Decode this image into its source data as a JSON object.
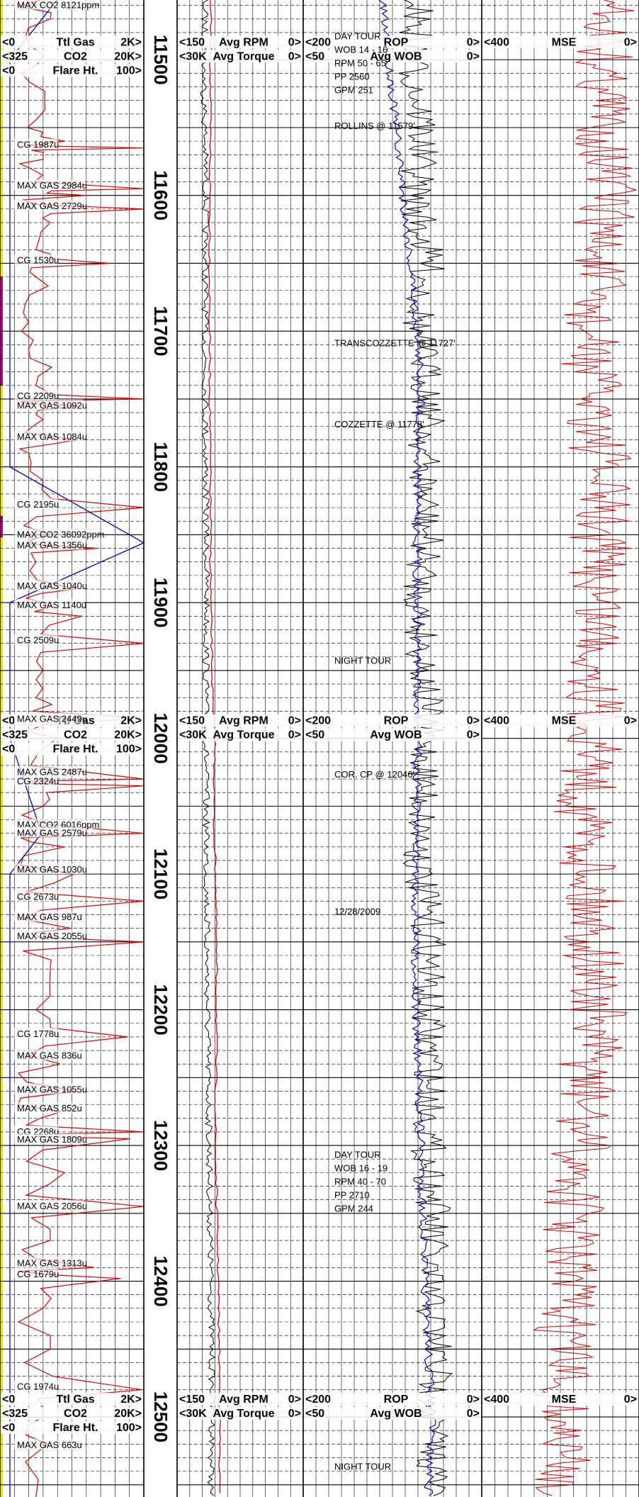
{
  "chart_data": {
    "type": "line",
    "title": "",
    "depth_axis": {
      "label": "",
      "range": [
        11456,
        12559
      ],
      "major_ticks": [
        11500,
        11600,
        11700,
        11800,
        11900,
        12000,
        12100,
        12200,
        12300,
        12400,
        12500
      ]
    },
    "tracks": [
      {
        "name": "gas",
        "scales": [
          {
            "min_label": "<0",
            "name": "Ttl Gas",
            "max_label": "2K>",
            "range": [
              0,
              2000
            ]
          },
          {
            "min_label": "<325",
            "name": "CO2",
            "max_label": "20K>",
            "range": [
              325,
              20000
            ]
          },
          {
            "min_label": "<0",
            "name": "Flare Ht.",
            "max_label": "100>",
            "range": [
              0,
              100
            ]
          }
        ]
      },
      {
        "name": "drilling",
        "scales": [
          {
            "min_label": "<150",
            "name": "Avg RPM",
            "max_label": "0>",
            "range": [
              150,
              0
            ]
          },
          {
            "min_label": "<30K",
            "name": "Avg Torque",
            "max_label": "0>",
            "range": [
              30000,
              0
            ]
          }
        ]
      },
      {
        "name": "rop",
        "scales": [
          {
            "min_label": "<200",
            "name": "ROP",
            "max_label": "0>",
            "range": [
              200,
              0
            ]
          },
          {
            "min_label": "<50",
            "name": "Avg WOB",
            "max_label": "0>",
            "range": [
              50,
              0
            ]
          }
        ]
      },
      {
        "name": "mse",
        "scales": [
          {
            "min_label": "<400",
            "name": "MSE",
            "max_label": "0>",
            "range": [
              400,
              0
            ]
          }
        ]
      }
    ],
    "header_depths": [
      11500,
      12000,
      12500
    ],
    "series": [
      {
        "name": "Ttl Gas",
        "color": "#dd0000",
        "units": "u",
        "points": [
          [
            11456,
            560
          ],
          [
            11470,
            700
          ],
          [
            11490,
            420
          ],
          [
            11510,
            300
          ],
          [
            11530,
            620
          ],
          [
            11550,
            380
          ],
          [
            11560,
            900
          ],
          [
            11565,
            1987
          ],
          [
            11570,
            600
          ],
          [
            11580,
            420
          ],
          [
            11595,
            2984
          ],
          [
            11600,
            1200
          ],
          [
            11610,
            2729
          ],
          [
            11620,
            700
          ],
          [
            11640,
            500
          ],
          [
            11650,
            1530
          ],
          [
            11660,
            500
          ],
          [
            11680,
            350
          ],
          [
            11700,
            300
          ],
          [
            11720,
            420
          ],
          [
            11740,
            500
          ],
          [
            11750,
            2209
          ],
          [
            11755,
            1092
          ],
          [
            11765,
            600
          ],
          [
            11780,
            1084
          ],
          [
            11790,
            400
          ],
          [
            11810,
            600
          ],
          [
            11830,
            2195
          ],
          [
            11850,
            700
          ],
          [
            11860,
            1356
          ],
          [
            11870,
            500
          ],
          [
            11890,
            1040
          ],
          [
            11900,
            600
          ],
          [
            11910,
            1140
          ],
          [
            11930,
            2509
          ],
          [
            11950,
            600
          ],
          [
            11970,
            500
          ],
          [
            11985,
            2449
          ],
          [
            12000,
            800
          ],
          [
            12030,
            2487
          ],
          [
            12035,
            2324
          ],
          [
            12050,
            600
          ],
          [
            12070,
            2579
          ],
          [
            12080,
            900
          ],
          [
            12100,
            1030
          ],
          [
            12120,
            2673
          ],
          [
            12140,
            987
          ],
          [
            12150,
            2055
          ],
          [
            12170,
            700
          ],
          [
            12200,
            500
          ],
          [
            12220,
            1778
          ],
          [
            12240,
            836
          ],
          [
            12260,
            1055
          ],
          [
            12275,
            852
          ],
          [
            12290,
            2268
          ],
          [
            12295,
            1809
          ],
          [
            12320,
            900
          ],
          [
            12345,
            2056
          ],
          [
            12370,
            700
          ],
          [
            12390,
            1313
          ],
          [
            12398,
            1679
          ],
          [
            12420,
            600
          ],
          [
            12450,
            700
          ],
          [
            12480,
            1974
          ],
          [
            12500,
            600
          ],
          [
            12520,
            663
          ],
          [
            12559,
            500
          ]
        ]
      },
      {
        "name": "CO2",
        "color": "#0000cc",
        "units": "ppm",
        "points": [
          [
            11456,
            8121
          ],
          [
            11500,
            600
          ],
          [
            11600,
            500
          ],
          [
            11700,
            500
          ],
          [
            11765,
            1200
          ],
          [
            11800,
            500
          ],
          [
            11856,
            36092
          ],
          [
            11900,
            600
          ],
          [
            12000,
            500
          ],
          [
            12070,
            6016
          ],
          [
            12100,
            600
          ],
          [
            12200,
            500
          ],
          [
            12300,
            800
          ],
          [
            12559,
            500
          ]
        ]
      },
      {
        "name": "Avg RPM",
        "color": "#000000",
        "units": "rpm",
        "points": [
          [
            11456,
            117
          ],
          [
            11520,
            118
          ],
          [
            11600,
            116
          ],
          [
            11700,
            117
          ],
          [
            11800,
            116
          ],
          [
            11900,
            115
          ],
          [
            12000,
            116
          ],
          [
            12100,
            115
          ],
          [
            12200,
            114
          ],
          [
            12300,
            112
          ],
          [
            12400,
            110
          ],
          [
            12500,
            108
          ],
          [
            12559,
            110
          ]
        ]
      },
      {
        "name": "Avg Torque",
        "color": "#dd0000",
        "units": "ft-lb",
        "points": [
          [
            11456,
            22000
          ],
          [
            11600,
            22200
          ],
          [
            11700,
            22300
          ],
          [
            11800,
            22100
          ],
          [
            11900,
            22000
          ],
          [
            11980,
            21500
          ],
          [
            12000,
            21000
          ],
          [
            12060,
            21300
          ],
          [
            12100,
            20800
          ],
          [
            12200,
            20600
          ],
          [
            12300,
            20900
          ],
          [
            12400,
            20200
          ],
          [
            12500,
            19800
          ],
          [
            12559,
            20000
          ]
        ]
      },
      {
        "name": "ROP",
        "color": "#000000",
        "units": "ft/hr",
        "points": [
          [
            11456,
            70
          ],
          [
            11500,
            78
          ],
          [
            11550,
            66
          ],
          [
            11600,
            74
          ],
          [
            11650,
            60
          ],
          [
            11700,
            72
          ],
          [
            11750,
            58
          ],
          [
            11800,
            66
          ],
          [
            11850,
            62
          ],
          [
            11900,
            70
          ],
          [
            11950,
            64
          ],
          [
            12000,
            62
          ],
          [
            12050,
            66
          ],
          [
            12100,
            70
          ],
          [
            12150,
            58
          ],
          [
            12200,
            62
          ],
          [
            12250,
            56
          ],
          [
            12300,
            60
          ],
          [
            12350,
            54
          ],
          [
            12400,
            60
          ],
          [
            12450,
            50
          ],
          [
            12500,
            56
          ],
          [
            12559,
            52
          ]
        ]
      },
      {
        "name": "Avg WOB",
        "color": "#0000cc",
        "units": "klb",
        "points": [
          [
            11456,
            28
          ],
          [
            11500,
            26
          ],
          [
            11550,
            24
          ],
          [
            11600,
            22
          ],
          [
            11700,
            18
          ],
          [
            11750,
            17
          ],
          [
            11800,
            18
          ],
          [
            11900,
            18
          ],
          [
            12000,
            18
          ],
          [
            12100,
            18.5
          ],
          [
            12200,
            18.5
          ],
          [
            12300,
            17
          ],
          [
            12400,
            16
          ],
          [
            12500,
            14
          ],
          [
            12559,
            15
          ]
        ]
      },
      {
        "name": "MSE",
        "color": "#dd0000",
        "units": "kpsi",
        "points": [
          [
            11456,
            60
          ],
          [
            11500,
            90
          ],
          [
            11600,
            80
          ],
          [
            11700,
            130
          ],
          [
            11800,
            95
          ],
          [
            11900,
            100
          ],
          [
            12000,
            110
          ],
          [
            12050,
            140
          ],
          [
            12100,
            120
          ],
          [
            12200,
            110
          ],
          [
            12300,
            150
          ],
          [
            12400,
            180
          ],
          [
            12500,
            200
          ],
          [
            12559,
            190
          ]
        ]
      }
    ],
    "annotations": {
      "gas_track": [
        {
          "depth": 11462,
          "text": "MAX CO2 8121ppm"
        },
        {
          "depth": 11565,
          "text": "CG 1987u"
        },
        {
          "depth": 11595,
          "text": "MAX GAS 2984u"
        },
        {
          "depth": 11610,
          "text": "MAX GAS 2729u"
        },
        {
          "depth": 11650,
          "text": "CG 1530u"
        },
        {
          "depth": 11750,
          "text": "CG 2209u"
        },
        {
          "depth": 11757,
          "text": "MAX GAS 1092u"
        },
        {
          "depth": 11780,
          "text": "MAX GAS 1084u"
        },
        {
          "depth": 11830,
          "text": "CG 2195u"
        },
        {
          "depth": 11852,
          "text": "MAX CO2 36092ppm"
        },
        {
          "depth": 11860,
          "text": "MAX GAS 1356u"
        },
        {
          "depth": 11890,
          "text": "MAX GAS 1040u"
        },
        {
          "depth": 11904,
          "text": "MAX GAS 1140u"
        },
        {
          "depth": 11930,
          "text": "CG 2509u"
        },
        {
          "depth": 11988,
          "text": "MAX GAS 2449u"
        },
        {
          "depth": 12027,
          "text": "MAX GAS 2487u"
        },
        {
          "depth": 12034,
          "text": "CG 2324u"
        },
        {
          "depth": 12066,
          "text": "MAX CO2 6016ppm"
        },
        {
          "depth": 12072,
          "text": "MAX GAS 2579u"
        },
        {
          "depth": 12099,
          "text": "MAX GAS 1030u"
        },
        {
          "depth": 12119,
          "text": "CG 2673u"
        },
        {
          "depth": 12134,
          "text": "MAX GAS 987u"
        },
        {
          "depth": 12148,
          "text": "MAX GAS 2055u"
        },
        {
          "depth": 12220,
          "text": "CG 1778u"
        },
        {
          "depth": 12236,
          "text": "MAX GAS 836u"
        },
        {
          "depth": 12261,
          "text": "MAX GAS 1055u"
        },
        {
          "depth": 12275,
          "text": "MAX GAS 852u"
        },
        {
          "depth": 12292,
          "text": "CG 2268u"
        },
        {
          "depth": 12298,
          "text": "MAX GAS 1809u"
        },
        {
          "depth": 12347,
          "text": "MAX GAS 2056u"
        },
        {
          "depth": 12389,
          "text": "MAX GAS 1313u"
        },
        {
          "depth": 12397,
          "text": "CG 1679u"
        },
        {
          "depth": 12480,
          "text": "CG 1974u"
        },
        {
          "depth": 12523,
          "text": "MAX GAS 663u"
        }
      ],
      "remarks": [
        {
          "depth": 11485,
          "lines": [
            "DAY TOUR",
            "WOB 14 - 16",
            "RPM 50 - 65",
            "PP 2560",
            "GPM 251"
          ]
        },
        {
          "depth": 11551,
          "lines": [
            "ROLLINS @ 11579'"
          ]
        },
        {
          "depth": 11711,
          "lines": [
            "TRANSCOZZETTE @ 11727'"
          ]
        },
        {
          "depth": 11771,
          "lines": [
            "COZZETTE @ 11778'"
          ]
        },
        {
          "depth": 11945,
          "lines": [
            "NIGHT TOUR"
          ]
        },
        {
          "depth": 12029,
          "lines": [
            "COR. CP @ 12046'"
          ]
        },
        {
          "depth": 12130,
          "lines": [
            "12/28/2009"
          ]
        },
        {
          "depth": 12309,
          "lines": [
            "DAY TOUR",
            "WOB 16 - 19",
            "RPM 40 - 70",
            "PP 2710",
            "GPM 244"
          ]
        },
        {
          "depth": 12539,
          "lines": [
            "NIGHT TOUR"
          ]
        }
      ]
    },
    "grid": true
  }
}
